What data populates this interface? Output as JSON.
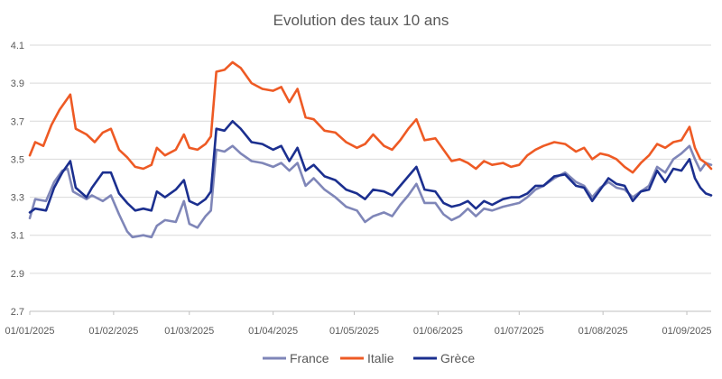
{
  "chart_data": {
    "type": "line",
    "title": "Evolution des taux 10 ans",
    "xlabel": "",
    "ylabel": "",
    "ylim": [
      2.7,
      4.1
    ],
    "yticks": [
      "2.7",
      "2.9",
      "3.1",
      "3.3",
      "3.5",
      "3.7",
      "3.9",
      "4.1"
    ],
    "x_range": [
      "2025-01-01",
      "2025-09-10"
    ],
    "xticks": [
      {
        "date": "2025-01-01",
        "label": "01/01/2025"
      },
      {
        "date": "2025-02-01",
        "label": "01/02/2025"
      },
      {
        "date": "2025-03-01",
        "label": "01/03/2025"
      },
      {
        "date": "2025-04-01",
        "label": "01/04/2025"
      },
      {
        "date": "2025-05-01",
        "label": "01/05/2025"
      },
      {
        "date": "2025-06-01",
        "label": "01/06/2025"
      },
      {
        "date": "2025-07-01",
        "label": "01/07/2025"
      },
      {
        "date": "2025-08-01",
        "label": "01/08/2025"
      },
      {
        "date": "2025-09-01",
        "label": "01/09/2025"
      }
    ],
    "grid": true,
    "legend": "bottom",
    "series": [
      {
        "name": "France",
        "color": "#7f86b8",
        "points": [
          [
            "2025-01-01",
            3.19
          ],
          [
            "2025-01-03",
            3.29
          ],
          [
            "2025-01-07",
            3.28
          ],
          [
            "2025-01-10",
            3.38
          ],
          [
            "2025-01-13",
            3.44
          ],
          [
            "2025-01-15",
            3.45
          ],
          [
            "2025-01-17",
            3.33
          ],
          [
            "2025-01-22",
            3.29
          ],
          [
            "2025-01-24",
            3.31
          ],
          [
            "2025-01-28",
            3.28
          ],
          [
            "2025-01-31",
            3.31
          ],
          [
            "2025-02-03",
            3.21
          ],
          [
            "2025-02-06",
            3.12
          ],
          [
            "2025-02-08",
            3.09
          ],
          [
            "2025-02-12",
            3.1
          ],
          [
            "2025-02-15",
            3.09
          ],
          [
            "2025-02-17",
            3.15
          ],
          [
            "2025-02-20",
            3.18
          ],
          [
            "2025-02-24",
            3.17
          ],
          [
            "2025-02-27",
            3.28
          ],
          [
            "2025-03-01",
            3.16
          ],
          [
            "2025-03-04",
            3.14
          ],
          [
            "2025-03-07",
            3.2
          ],
          [
            "2025-03-09",
            3.23
          ],
          [
            "2025-03-11",
            3.55
          ],
          [
            "2025-03-14",
            3.54
          ],
          [
            "2025-03-17",
            3.57
          ],
          [
            "2025-03-20",
            3.53
          ],
          [
            "2025-03-24",
            3.49
          ],
          [
            "2025-03-28",
            3.48
          ],
          [
            "2025-04-01",
            3.46
          ],
          [
            "2025-04-04",
            3.48
          ],
          [
            "2025-04-07",
            3.44
          ],
          [
            "2025-04-10",
            3.48
          ],
          [
            "2025-04-13",
            3.36
          ],
          [
            "2025-04-16",
            3.4
          ],
          [
            "2025-04-20",
            3.34
          ],
          [
            "2025-04-24",
            3.3
          ],
          [
            "2025-04-28",
            3.25
          ],
          [
            "2025-05-02",
            3.23
          ],
          [
            "2025-05-05",
            3.17
          ],
          [
            "2025-05-08",
            3.2
          ],
          [
            "2025-05-12",
            3.22
          ],
          [
            "2025-05-15",
            3.2
          ],
          [
            "2025-05-18",
            3.26
          ],
          [
            "2025-05-21",
            3.31
          ],
          [
            "2025-05-24",
            3.37
          ],
          [
            "2025-05-27",
            3.27
          ],
          [
            "2025-05-31",
            3.27
          ],
          [
            "2025-06-03",
            3.21
          ],
          [
            "2025-06-06",
            3.18
          ],
          [
            "2025-06-09",
            3.2
          ],
          [
            "2025-06-12",
            3.24
          ],
          [
            "2025-06-15",
            3.2
          ],
          [
            "2025-06-18",
            3.24
          ],
          [
            "2025-06-21",
            3.23
          ],
          [
            "2025-06-25",
            3.25
          ],
          [
            "2025-06-28",
            3.26
          ],
          [
            "2025-07-01",
            3.27
          ],
          [
            "2025-07-04",
            3.3
          ],
          [
            "2025-07-07",
            3.34
          ],
          [
            "2025-07-10",
            3.36
          ],
          [
            "2025-07-14",
            3.4
          ],
          [
            "2025-07-18",
            3.43
          ],
          [
            "2025-07-22",
            3.38
          ],
          [
            "2025-07-25",
            3.36
          ],
          [
            "2025-07-28",
            3.3
          ],
          [
            "2025-07-31",
            3.35
          ],
          [
            "2025-08-03",
            3.38
          ],
          [
            "2025-08-06",
            3.35
          ],
          [
            "2025-08-09",
            3.34
          ],
          [
            "2025-08-12",
            3.3
          ],
          [
            "2025-08-15",
            3.33
          ],
          [
            "2025-08-18",
            3.36
          ],
          [
            "2025-08-21",
            3.46
          ],
          [
            "2025-08-24",
            3.43
          ],
          [
            "2025-08-27",
            3.5
          ],
          [
            "2025-08-30",
            3.53
          ],
          [
            "2025-09-02",
            3.57
          ],
          [
            "2025-09-04",
            3.5
          ],
          [
            "2025-09-06",
            3.44
          ],
          [
            "2025-09-08",
            3.48
          ],
          [
            "2025-09-10",
            3.47
          ]
        ]
      },
      {
        "name": "Italie",
        "color": "#ee5a24",
        "points": [
          [
            "2025-01-01",
            3.52
          ],
          [
            "2025-01-03",
            3.59
          ],
          [
            "2025-01-06",
            3.57
          ],
          [
            "2025-01-09",
            3.68
          ],
          [
            "2025-01-12",
            3.76
          ],
          [
            "2025-01-15",
            3.82
          ],
          [
            "2025-01-16",
            3.84
          ],
          [
            "2025-01-18",
            3.66
          ],
          [
            "2025-01-22",
            3.63
          ],
          [
            "2025-01-25",
            3.59
          ],
          [
            "2025-01-28",
            3.64
          ],
          [
            "2025-01-31",
            3.66
          ],
          [
            "2025-02-03",
            3.55
          ],
          [
            "2025-02-06",
            3.51
          ],
          [
            "2025-02-09",
            3.46
          ],
          [
            "2025-02-12",
            3.45
          ],
          [
            "2025-02-15",
            3.47
          ],
          [
            "2025-02-17",
            3.56
          ],
          [
            "2025-02-20",
            3.52
          ],
          [
            "2025-02-24",
            3.55
          ],
          [
            "2025-02-27",
            3.63
          ],
          [
            "2025-03-01",
            3.56
          ],
          [
            "2025-03-04",
            3.55
          ],
          [
            "2025-03-07",
            3.58
          ],
          [
            "2025-03-09",
            3.62
          ],
          [
            "2025-03-11",
            3.96
          ],
          [
            "2025-03-14",
            3.97
          ],
          [
            "2025-03-17",
            4.01
          ],
          [
            "2025-03-20",
            3.98
          ],
          [
            "2025-03-24",
            3.9
          ],
          [
            "2025-03-28",
            3.87
          ],
          [
            "2025-04-01",
            3.86
          ],
          [
            "2025-04-04",
            3.88
          ],
          [
            "2025-04-07",
            3.8
          ],
          [
            "2025-04-10",
            3.87
          ],
          [
            "2025-04-13",
            3.72
          ],
          [
            "2025-04-16",
            3.71
          ],
          [
            "2025-04-20",
            3.65
          ],
          [
            "2025-04-24",
            3.64
          ],
          [
            "2025-04-28",
            3.59
          ],
          [
            "2025-05-02",
            3.56
          ],
          [
            "2025-05-05",
            3.58
          ],
          [
            "2025-05-08",
            3.63
          ],
          [
            "2025-05-12",
            3.57
          ],
          [
            "2025-05-15",
            3.55
          ],
          [
            "2025-05-18",
            3.6
          ],
          [
            "2025-05-21",
            3.66
          ],
          [
            "2025-05-24",
            3.71
          ],
          [
            "2025-05-27",
            3.6
          ],
          [
            "2025-05-31",
            3.61
          ],
          [
            "2025-06-03",
            3.55
          ],
          [
            "2025-06-06",
            3.49
          ],
          [
            "2025-06-09",
            3.5
          ],
          [
            "2025-06-12",
            3.48
          ],
          [
            "2025-06-15",
            3.45
          ],
          [
            "2025-06-18",
            3.49
          ],
          [
            "2025-06-21",
            3.47
          ],
          [
            "2025-06-25",
            3.48
          ],
          [
            "2025-06-28",
            3.46
          ],
          [
            "2025-07-01",
            3.47
          ],
          [
            "2025-07-04",
            3.52
          ],
          [
            "2025-07-07",
            3.55
          ],
          [
            "2025-07-10",
            3.57
          ],
          [
            "2025-07-14",
            3.59
          ],
          [
            "2025-07-18",
            3.58
          ],
          [
            "2025-07-22",
            3.54
          ],
          [
            "2025-07-25",
            3.56
          ],
          [
            "2025-07-28",
            3.5
          ],
          [
            "2025-07-31",
            3.53
          ],
          [
            "2025-08-03",
            3.52
          ],
          [
            "2025-08-06",
            3.5
          ],
          [
            "2025-08-09",
            3.46
          ],
          [
            "2025-08-12",
            3.43
          ],
          [
            "2025-08-15",
            3.48
          ],
          [
            "2025-08-18",
            3.52
          ],
          [
            "2025-08-21",
            3.58
          ],
          [
            "2025-08-24",
            3.56
          ],
          [
            "2025-08-27",
            3.59
          ],
          [
            "2025-08-30",
            3.6
          ],
          [
            "2025-09-02",
            3.67
          ],
          [
            "2025-09-04",
            3.56
          ],
          [
            "2025-09-06",
            3.5
          ],
          [
            "2025-09-08",
            3.48
          ],
          [
            "2025-09-10",
            3.45
          ]
        ]
      },
      {
        "name": "Grèce",
        "color": "#1b2f8f",
        "points": [
          [
            "2025-01-01",
            3.22
          ],
          [
            "2025-01-03",
            3.24
          ],
          [
            "2025-01-07",
            3.23
          ],
          [
            "2025-01-10",
            3.35
          ],
          [
            "2025-01-13",
            3.43
          ],
          [
            "2025-01-16",
            3.49
          ],
          [
            "2025-01-18",
            3.35
          ],
          [
            "2025-01-22",
            3.3
          ],
          [
            "2025-01-24",
            3.35
          ],
          [
            "2025-01-28",
            3.43
          ],
          [
            "2025-01-31",
            3.43
          ],
          [
            "2025-02-03",
            3.32
          ],
          [
            "2025-02-06",
            3.27
          ],
          [
            "2025-02-09",
            3.23
          ],
          [
            "2025-02-12",
            3.24
          ],
          [
            "2025-02-15",
            3.23
          ],
          [
            "2025-02-17",
            3.33
          ],
          [
            "2025-02-20",
            3.3
          ],
          [
            "2025-02-24",
            3.34
          ],
          [
            "2025-02-27",
            3.39
          ],
          [
            "2025-03-01",
            3.28
          ],
          [
            "2025-03-04",
            3.26
          ],
          [
            "2025-03-07",
            3.29
          ],
          [
            "2025-03-09",
            3.33
          ],
          [
            "2025-03-11",
            3.66
          ],
          [
            "2025-03-14",
            3.65
          ],
          [
            "2025-03-17",
            3.7
          ],
          [
            "2025-03-20",
            3.66
          ],
          [
            "2025-03-24",
            3.59
          ],
          [
            "2025-03-28",
            3.58
          ],
          [
            "2025-04-01",
            3.55
          ],
          [
            "2025-04-04",
            3.57
          ],
          [
            "2025-04-07",
            3.49
          ],
          [
            "2025-04-10",
            3.56
          ],
          [
            "2025-04-13",
            3.44
          ],
          [
            "2025-04-16",
            3.47
          ],
          [
            "2025-04-20",
            3.41
          ],
          [
            "2025-04-24",
            3.39
          ],
          [
            "2025-04-28",
            3.34
          ],
          [
            "2025-05-02",
            3.32
          ],
          [
            "2025-05-05",
            3.29
          ],
          [
            "2025-05-08",
            3.34
          ],
          [
            "2025-05-12",
            3.33
          ],
          [
            "2025-05-15",
            3.31
          ],
          [
            "2025-05-18",
            3.36
          ],
          [
            "2025-05-21",
            3.41
          ],
          [
            "2025-05-24",
            3.46
          ],
          [
            "2025-05-27",
            3.34
          ],
          [
            "2025-05-31",
            3.33
          ],
          [
            "2025-06-03",
            3.27
          ],
          [
            "2025-06-06",
            3.25
          ],
          [
            "2025-06-09",
            3.26
          ],
          [
            "2025-06-12",
            3.28
          ],
          [
            "2025-06-15",
            3.24
          ],
          [
            "2025-06-18",
            3.28
          ],
          [
            "2025-06-21",
            3.26
          ],
          [
            "2025-06-25",
            3.29
          ],
          [
            "2025-06-28",
            3.3
          ],
          [
            "2025-07-01",
            3.3
          ],
          [
            "2025-07-04",
            3.32
          ],
          [
            "2025-07-07",
            3.36
          ],
          [
            "2025-07-10",
            3.36
          ],
          [
            "2025-07-14",
            3.41
          ],
          [
            "2025-07-18",
            3.42
          ],
          [
            "2025-07-22",
            3.36
          ],
          [
            "2025-07-25",
            3.35
          ],
          [
            "2025-07-28",
            3.28
          ],
          [
            "2025-07-31",
            3.34
          ],
          [
            "2025-08-03",
            3.4
          ],
          [
            "2025-08-06",
            3.37
          ],
          [
            "2025-08-09",
            3.36
          ],
          [
            "2025-08-12",
            3.28
          ],
          [
            "2025-08-15",
            3.33
          ],
          [
            "2025-08-18",
            3.34
          ],
          [
            "2025-08-21",
            3.44
          ],
          [
            "2025-08-24",
            3.38
          ],
          [
            "2025-08-27",
            3.45
          ],
          [
            "2025-08-30",
            3.44
          ],
          [
            "2025-09-02",
            3.5
          ],
          [
            "2025-09-04",
            3.4
          ],
          [
            "2025-09-06",
            3.35
          ],
          [
            "2025-09-08",
            3.32
          ],
          [
            "2025-09-10",
            3.31
          ]
        ]
      }
    ]
  }
}
